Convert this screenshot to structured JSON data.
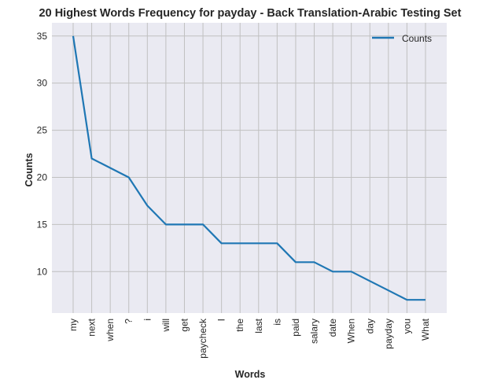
{
  "chart_data": {
    "type": "line",
    "title": "20 Highest Words Frequency for payday - Back Translation-Arabic Testing Set",
    "xlabel": "Words",
    "ylabel": "Counts",
    "categories": [
      "my",
      "next",
      "when",
      "?",
      "i",
      "will",
      "get",
      "paycheck",
      "I",
      "the",
      "last",
      "is",
      "paid",
      "salary",
      "date",
      "When",
      "day",
      "payday",
      "you",
      "What"
    ],
    "series": [
      {
        "name": "Counts",
        "values": [
          35,
          22,
          21,
          20,
          17,
          15,
          15,
          15,
          13,
          13,
          13,
          13,
          11,
          11,
          10,
          10,
          9,
          8,
          7,
          7
        ]
      }
    ],
    "y_ticks": [
      10,
      15,
      20,
      25,
      30,
      35
    ],
    "ylim": [
      5.6,
      36.4
    ],
    "grid": true,
    "legend": "top-right",
    "colors": {
      "line": "#1f77b4",
      "background": "#eaeaf2",
      "grid": "#c0c0c0"
    }
  }
}
